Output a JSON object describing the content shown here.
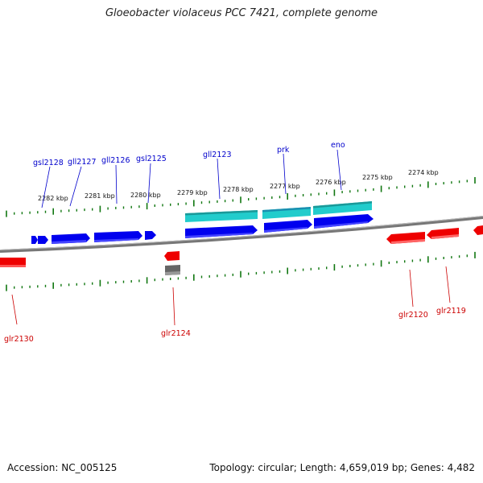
{
  "title": "Gloeobacter violaceus PCC 7421, complete genome",
  "footer": {
    "accession": "Accession: NC_005125",
    "summary": "Topology: circular; Length: 4,659,019 bp; Genes: 4,482"
  },
  "colors": {
    "forward_gene": "#0000ee",
    "reverse_gene": "#ee0000",
    "highlight": "#22cccc",
    "other": "#666666",
    "tick": "#117711",
    "backbone": "#888888"
  },
  "scale_labels": [
    "2282 kbp",
    "2281 kbp",
    "2280 kbp",
    "2279 kbp",
    "2278 kbp",
    "2277 kbp",
    "2276 kbp",
    "2275 kbp",
    "2274 kbp"
  ],
  "gene_labels_top": [
    "gsl2128",
    "gll2127",
    "gll2126",
    "gsl2125",
    "gll2123",
    "prk",
    "eno"
  ],
  "gene_labels_bottom": [
    "glr2130",
    "glr2124",
    "glr2120",
    "glr2119"
  ]
}
